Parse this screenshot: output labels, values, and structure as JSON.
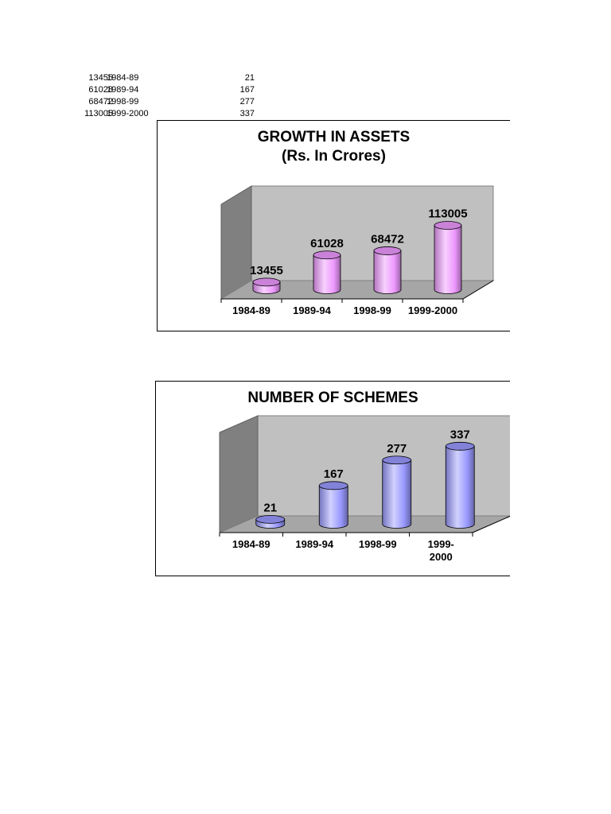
{
  "source_table": {
    "rows": [
      {
        "assets": "13455",
        "period": "1984-89",
        "schemes": "21"
      },
      {
        "assets": "61028",
        "period": "1989-94",
        "schemes": "167"
      },
      {
        "assets": "68472",
        "period": "1998-99",
        "schemes": "277"
      },
      {
        "assets": "113005",
        "period": "1999-2000",
        "schemes": "337"
      }
    ]
  },
  "chart_data": [
    {
      "type": "bar",
      "title": "GROWTH IN ASSETS",
      "subtitle": "(Rs. In Crores)",
      "categories": [
        "1984-89",
        "1989-94",
        "1998-99",
        "1999-2000"
      ],
      "values": [
        13455,
        61028,
        68472,
        113005
      ],
      "data_labels": [
        "13455",
        "61028",
        "68472",
        "113005"
      ],
      "ylim": [
        0,
        120000
      ],
      "grid": false,
      "legend": "none",
      "bar_style": "3d-cylinder",
      "bar_color": "#ee99ff"
    },
    {
      "type": "bar",
      "title": "NUMBER OF SCHEMES",
      "categories": [
        "1984-89",
        "1989-94",
        "1998-99",
        "1999-2000"
      ],
      "tick_labels": [
        [
          "1984-89"
        ],
        [
          "1989-94"
        ],
        [
          "1998-99"
        ],
        [
          "1999-",
          "2000"
        ]
      ],
      "values": [
        21,
        167,
        277,
        337
      ],
      "data_labels": [
        "21",
        "167",
        "277",
        "337"
      ],
      "ylim": [
        0,
        350
      ],
      "grid": false,
      "legend": "none",
      "bar_style": "3d-cylinder",
      "bar_color": "#9999ff"
    }
  ]
}
